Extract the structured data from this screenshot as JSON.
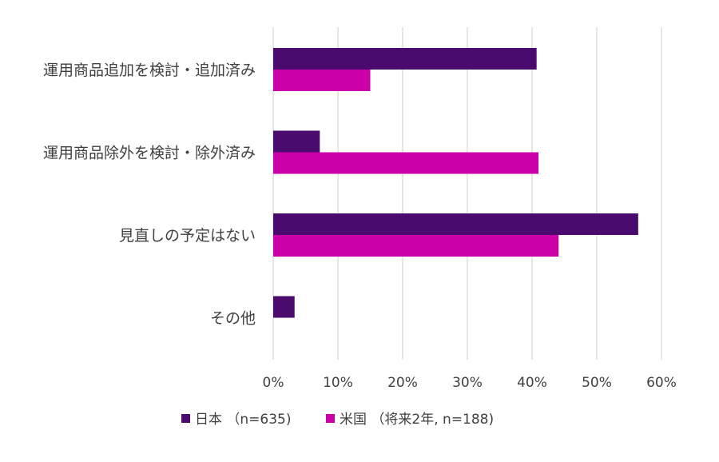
{
  "chart_data": {
    "type": "bar",
    "orientation": "horizontal",
    "categories": [
      "運用商品追加を検討・追加済み",
      "運用商品除外を検討・除外済み",
      "見直しの予定はない",
      "その他"
    ],
    "series": [
      {
        "name": "日本 （n=635)",
        "values": [
          40.7,
          7.2,
          56.4,
          3.3
        ]
      },
      {
        "name": "米国 （将来2年, n=188)",
        "values": [
          15.0,
          41.0,
          44.1,
          0
        ]
      }
    ],
    "xlim": [
      0,
      60
    ],
    "xticks": [
      0,
      10,
      20,
      30,
      40,
      50,
      60
    ],
    "tick_labels": [
      "0%",
      "10%",
      "20%",
      "30%",
      "40%",
      "50%",
      "60%"
    ],
    "colors": [
      "#4b0a6e",
      "#cc00a8"
    ],
    "grid": "vertical",
    "legend_position": "bottom"
  }
}
